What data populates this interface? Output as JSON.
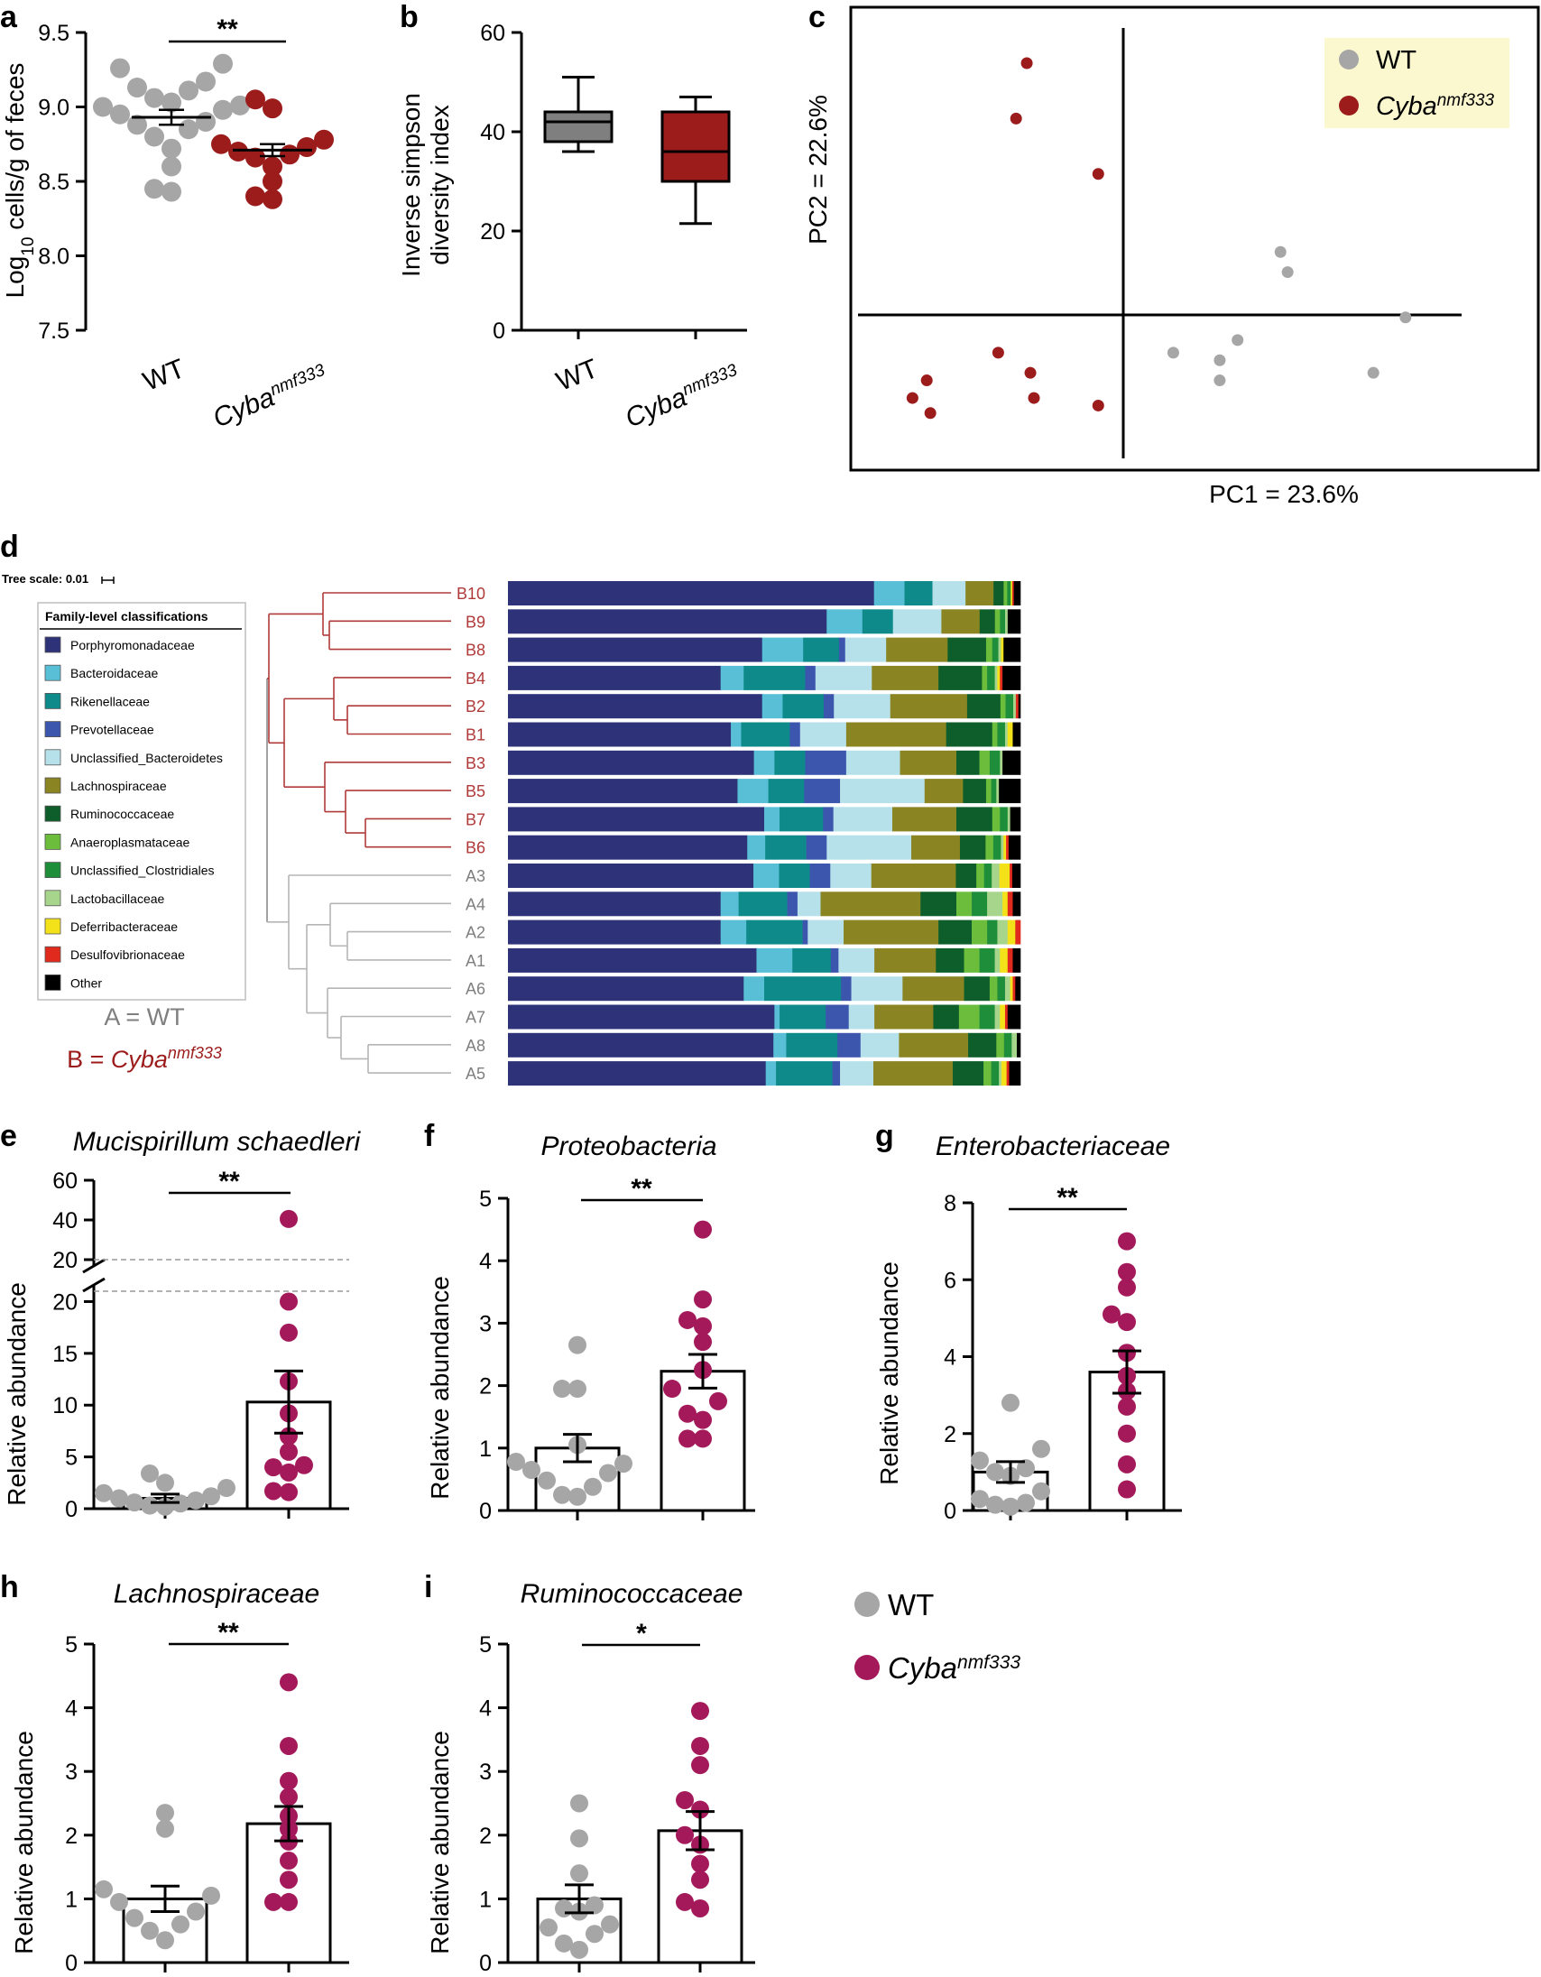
{
  "groups": {
    "wt": "WT",
    "mut": "Cyba",
    "mut_sup": "nmf333"
  },
  "colors": {
    "wt_point": "#a6a6a6",
    "mut_point_a": "#9c1c1c",
    "mut_point_e": "#a4195a",
    "wt_box": "#7f7f7f",
    "mut_box": "#9c1c1c",
    "tree_b": "#b03a3a",
    "tree_a": "#b5b5b5",
    "legend_bg": "#fbf8cf"
  },
  "panel_a": {
    "letter": "a",
    "ylabel_pre": "Log",
    "ylabel_sub": "10",
    "ylabel_post": " cells/g of feces",
    "significance": "**",
    "chart_data": {
      "type": "scatter",
      "ylim": [
        7.5,
        9.5
      ],
      "yticks": [
        "7.5",
        "8.0",
        "8.5",
        "9.0",
        "9.5"
      ],
      "categories": [
        "WT",
        "Cyba nmf333"
      ],
      "series": [
        {
          "name": "WT",
          "mean": 8.93,
          "sem": 0.05,
          "values": [
            9.29,
            9.26,
            9.17,
            9.13,
            9.11,
            9.06,
            9.03,
            9.0,
            8.98,
            8.95,
            8.9,
            8.85,
            8.8,
            8.72,
            8.6,
            8.45,
            8.43,
            9.01,
            8.88
          ]
        },
        {
          "name": "Cyba nmf333",
          "mean": 8.71,
          "sem": 0.04,
          "values": [
            9.05,
            8.99,
            8.78,
            8.75,
            8.73,
            8.7,
            8.68,
            8.66,
            8.6,
            8.5,
            8.4,
            8.38
          ]
        }
      ]
    }
  },
  "panel_b": {
    "letter": "b",
    "ylabel_line1": "Inverse simpson",
    "ylabel_line2": "diversity index",
    "chart_data": {
      "type": "box",
      "ylim": [
        0,
        60
      ],
      "yticks": [
        "0",
        "20",
        "40",
        "60"
      ],
      "categories": [
        "WT",
        "Cyba nmf333"
      ],
      "boxes": [
        {
          "name": "WT",
          "min": 36,
          "q1": 38,
          "median": 42,
          "q3": 44,
          "max": 51
        },
        {
          "name": "Cyba nmf333",
          "min": 21.5,
          "q1": 30,
          "median": 36,
          "q3": 44,
          "max": 47
        }
      ]
    }
  },
  "panel_c": {
    "letter": "c",
    "xlabel": "PC1 = 23.6%",
    "ylabel": "PC2 = 22.6%",
    "chart_data": {
      "type": "scatter",
      "series": [
        {
          "name": "WT",
          "points": [
            [
              0.44,
              0.25
            ],
            [
              0.46,
              0.17
            ],
            [
              0.79,
              -0.01
            ],
            [
              0.14,
              -0.15
            ],
            [
              0.32,
              -0.1
            ],
            [
              0.27,
              -0.18
            ],
            [
              0.27,
              -0.26
            ],
            [
              0.7,
              -0.23
            ]
          ]
        },
        {
          "name": "Cyba nmf333",
          "points": [
            [
              -0.27,
              1.0
            ],
            [
              -0.3,
              0.78
            ],
            [
              -0.07,
              0.56
            ],
            [
              -0.59,
              -0.33
            ],
            [
              -0.55,
              -0.26
            ],
            [
              -0.54,
              -0.39
            ],
            [
              -0.35,
              -0.15
            ],
            [
              -0.26,
              -0.23
            ],
            [
              -0.25,
              -0.33
            ],
            [
              -0.07,
              -0.36
            ]
          ]
        }
      ]
    }
  },
  "panel_d": {
    "letter": "d",
    "tree_scale": "Tree scale: 0.01",
    "legend_title": "Family-level classifications",
    "wt_key": "A = WT",
    "mut_key_pre": "B = ",
    "families": [
      {
        "name": "Porphyromonadaceae",
        "color": "#2e3278"
      },
      {
        "name": "Bacteroidaceae",
        "color": "#58bfd6"
      },
      {
        "name": "Rikenellaceae",
        "color": "#0e8a8a"
      },
      {
        "name": "Prevotellaceae",
        "color": "#3c55ad"
      },
      {
        "name": "Unclassified_Bacteroidetes",
        "color": "#b7e1ea"
      },
      {
        "name": "Lachnospiraceae",
        "color": "#8a8422"
      },
      {
        "name": "Ruminococcaceae",
        "color": "#0d5e2a"
      },
      {
        "name": "Anaeroplasmataceae",
        "color": "#6cbd3c"
      },
      {
        "name": "Unclassified_Clostridiales",
        "color": "#1f8e3a"
      },
      {
        "name": "Lactobacillaceae",
        "color": "#a8d58c"
      },
      {
        "name": "Deferribacteraceae",
        "color": "#f3e21a"
      },
      {
        "name": "Desulfovibrionaceae",
        "color": "#e02a1e"
      },
      {
        "name": "Other",
        "color": "#000000"
      }
    ],
    "chart_data": {
      "type": "stacked-bar",
      "samples": [
        {
          "label": "B10",
          "group": "B",
          "values": [
            72,
            6,
            5.5,
            0,
            6.5,
            5.5,
            2,
            0.7,
            0.7,
            0,
            0.3,
            0.3,
            1.3
          ]
        },
        {
          "label": "B9",
          "group": "B",
          "values": [
            62.5,
            7,
            6,
            0,
            9.5,
            7.5,
            3,
            1,
            1,
            0.5,
            0,
            0,
            2.5
          ]
        },
        {
          "label": "B8",
          "group": "B",
          "values": [
            49.6,
            8,
            7,
            1.2,
            8,
            12,
            7.5,
            1.2,
            1.2,
            0.5,
            0.5,
            0,
            3.3
          ]
        },
        {
          "label": "B4",
          "group": "B",
          "values": [
            41.5,
            4.5,
            12,
            2,
            11,
            13,
            8.5,
            1,
            1.5,
            0.5,
            0.5,
            0.5,
            3.5
          ]
        },
        {
          "label": "B2",
          "group": "B",
          "values": [
            49.6,
            4,
            8,
            2,
            11,
            15,
            6.5,
            1,
            1.5,
            0.5,
            0,
            0.5,
            0.4
          ]
        },
        {
          "label": "B1",
          "group": "B",
          "values": [
            43.5,
            2,
            9.5,
            2,
            9,
            19.5,
            9,
            1,
            1.5,
            0.5,
            1,
            0,
            1.5
          ]
        },
        {
          "label": "B3",
          "group": "B",
          "values": [
            48,
            4,
            6,
            8,
            10.5,
            11,
            4.5,
            2,
            2,
            0.5,
            0,
            0,
            3.5
          ]
        },
        {
          "label": "B5",
          "group": "B",
          "values": [
            44.8,
            6,
            7,
            7,
            16.5,
            7.5,
            4.5,
            1,
            1,
            0.5,
            0,
            0,
            4.2
          ]
        },
        {
          "label": "B7",
          "group": "B",
          "values": [
            50,
            3,
            8.5,
            2,
            11.5,
            12.5,
            7,
            1.5,
            1.5,
            0.5,
            0,
            0,
            2
          ]
        },
        {
          "label": "B6",
          "group": "B",
          "values": [
            46.7,
            3.5,
            8,
            4,
            16.5,
            9.5,
            5,
            1.5,
            1.5,
            0.5,
            0.5,
            0.5,
            2.3
          ]
        },
        {
          "label": "A3",
          "group": "A",
          "values": [
            47.9,
            5,
            6,
            4,
            8,
            16.5,
            4,
            1.5,
            1.5,
            1.5,
            2,
            0.5,
            1.6
          ]
        },
        {
          "label": "A4",
          "group": "A",
          "values": [
            41.5,
            3.5,
            9.5,
            2,
            4.5,
            19.5,
            7,
            3,
            3,
            3,
            1,
            1,
            1.5
          ]
        },
        {
          "label": "A2",
          "group": "A",
          "values": [
            41.5,
            5,
            11,
            1,
            7,
            18.5,
            6.5,
            3,
            2,
            2,
            1.5,
            1,
            0
          ]
        },
        {
          "label": "A1",
          "group": "A",
          "values": [
            48.5,
            7,
            7.5,
            1.5,
            7,
            12,
            5.5,
            3,
            3,
            1,
            1.5,
            1,
            1.5
          ]
        },
        {
          "label": "A6",
          "group": "A",
          "values": [
            46,
            4,
            15,
            2,
            10,
            12,
            5,
            1.5,
            1.5,
            1,
            0.5,
            0.5,
            1
          ]
        },
        {
          "label": "A7",
          "group": "A",
          "values": [
            52,
            1,
            9,
            4.5,
            5,
            11.5,
            5,
            4,
            3,
            1,
            1,
            0.5,
            2.5
          ]
        },
        {
          "label": "A8",
          "group": "A",
          "values": [
            51.8,
            2.5,
            10,
            4.5,
            7.5,
            13.5,
            5.5,
            1.5,
            1.5,
            1,
            0,
            0,
            0.7
          ]
        },
        {
          "label": "A5",
          "group": "A",
          "values": [
            50.3,
            2,
            11,
            1.5,
            6.5,
            15.5,
            6,
            1.5,
            1.5,
            0.5,
            1,
            0.5,
            2.2
          ]
        }
      ]
    }
  },
  "panel_e": {
    "letter": "e",
    "title": "Mucispirillum schaedleri",
    "ylabel": "Relative abundance",
    "significance": "**",
    "yticks_lower": [
      "0",
      "5",
      "10",
      "15",
      "20"
    ],
    "yticks_upper": [
      "20",
      "40",
      "60"
    ],
    "chart_data": {
      "type": "bar-scatter",
      "ylim_lower": [
        0,
        21
      ],
      "ylim_upper": [
        20,
        60
      ],
      "categories": [
        "WT",
        "Cyba nmf333"
      ],
      "series": [
        {
          "name": "WT",
          "mean": 1.0,
          "sem": 0.4,
          "values": [
            0.2,
            0.3,
            0.5,
            0.6,
            0.8,
            1.0,
            1.2,
            1.5,
            2.0,
            2.5,
            3.4
          ]
        },
        {
          "name": "Cyba nmf333",
          "mean": 10.3,
          "sem": 3.0,
          "values": [
            1.6,
            1.7,
            3.5,
            4.0,
            4.2,
            5.5,
            7.0,
            9.2,
            12.3,
            17.0,
            20.0,
            40.5
          ]
        }
      ]
    }
  },
  "panel_f": {
    "letter": "f",
    "title": "Proteobacteria",
    "ylabel": "Relative abundance",
    "significance": "**",
    "yticks": [
      "0",
      "1",
      "2",
      "3",
      "4",
      "5"
    ],
    "chart_data": {
      "type": "bar-scatter",
      "ylim": [
        0,
        5
      ],
      "categories": [
        "WT",
        "Cyba nmf333"
      ],
      "series": [
        {
          "name": "WT",
          "mean": 1.0,
          "sem": 0.22,
          "values": [
            0.22,
            0.25,
            0.38,
            0.48,
            0.6,
            0.65,
            0.75,
            0.78,
            1.05,
            1.95,
            1.95,
            2.65
          ]
        },
        {
          "name": "Cyba nmf333",
          "mean": 2.23,
          "sem": 0.27,
          "values": [
            1.15,
            1.15,
            1.45,
            1.55,
            1.75,
            1.95,
            2.25,
            2.7,
            2.95,
            3.05,
            3.38,
            4.5
          ]
        }
      ]
    }
  },
  "panel_g": {
    "letter": "g",
    "title": "Enterobacteriaceae",
    "ylabel": "Relative abundance",
    "significance": "**",
    "yticks": [
      "0",
      "2",
      "4",
      "6",
      "8"
    ],
    "chart_data": {
      "type": "bar-scatter",
      "ylim": [
        0,
        8
      ],
      "categories": [
        "WT",
        "Cyba nmf333"
      ],
      "series": [
        {
          "name": "WT",
          "mean": 1.0,
          "sem": 0.27,
          "values": [
            0.1,
            0.15,
            0.2,
            0.3,
            0.5,
            0.9,
            1.0,
            1.1,
            1.3,
            1.6,
            2.8
          ]
        },
        {
          "name": "Cyba nmf333",
          "mean": 3.6,
          "sem": 0.55,
          "values": [
            0.55,
            1.2,
            2.0,
            2.7,
            3.1,
            3.5,
            4.1,
            4.9,
            5.1,
            5.8,
            6.2,
            7.0
          ]
        }
      ]
    }
  },
  "panel_h": {
    "letter": "h",
    "title": "Lachnospiraceae",
    "ylabel": "Relative abundance",
    "significance": "**",
    "yticks": [
      "0",
      "1",
      "2",
      "3",
      "4",
      "5"
    ],
    "chart_data": {
      "type": "bar-scatter",
      "ylim": [
        0,
        5
      ],
      "categories": [
        "WT",
        "Cyba nmf333"
      ],
      "series": [
        {
          "name": "WT",
          "mean": 1.0,
          "sem": 0.2,
          "values": [
            0.35,
            0.5,
            0.6,
            0.7,
            0.8,
            0.95,
            1.05,
            1.15,
            2.1,
            2.35
          ]
        },
        {
          "name": "Cyba nmf333",
          "mean": 2.18,
          "sem": 0.27,
          "values": [
            0.95,
            0.95,
            1.3,
            1.6,
            1.9,
            2.1,
            2.3,
            2.6,
            2.85,
            3.4,
            4.4
          ]
        }
      ]
    }
  },
  "panel_i": {
    "letter": "i",
    "title": "Ruminococcaceae",
    "ylabel": "Relative abundance",
    "significance": "*",
    "yticks": [
      "0",
      "1",
      "2",
      "3",
      "4",
      "5"
    ],
    "chart_data": {
      "type": "bar-scatter",
      "ylim": [
        0,
        5
      ],
      "categories": [
        "WT",
        "Cyba nmf333"
      ],
      "series": [
        {
          "name": "WT",
          "mean": 1.0,
          "sem": 0.22,
          "values": [
            0.2,
            0.3,
            0.45,
            0.55,
            0.6,
            0.8,
            0.85,
            0.9,
            1.4,
            1.95,
            2.5
          ]
        },
        {
          "name": "Cyba nmf333",
          "mean": 2.07,
          "sem": 0.3,
          "values": [
            0.85,
            0.95,
            1.3,
            1.55,
            1.85,
            2.0,
            2.4,
            2.55,
            3.1,
            3.4,
            3.95
          ]
        }
      ]
    }
  },
  "legend_hi": {
    "wt": "WT",
    "mut": "Cyba",
    "mut_sup": "nmf333"
  }
}
